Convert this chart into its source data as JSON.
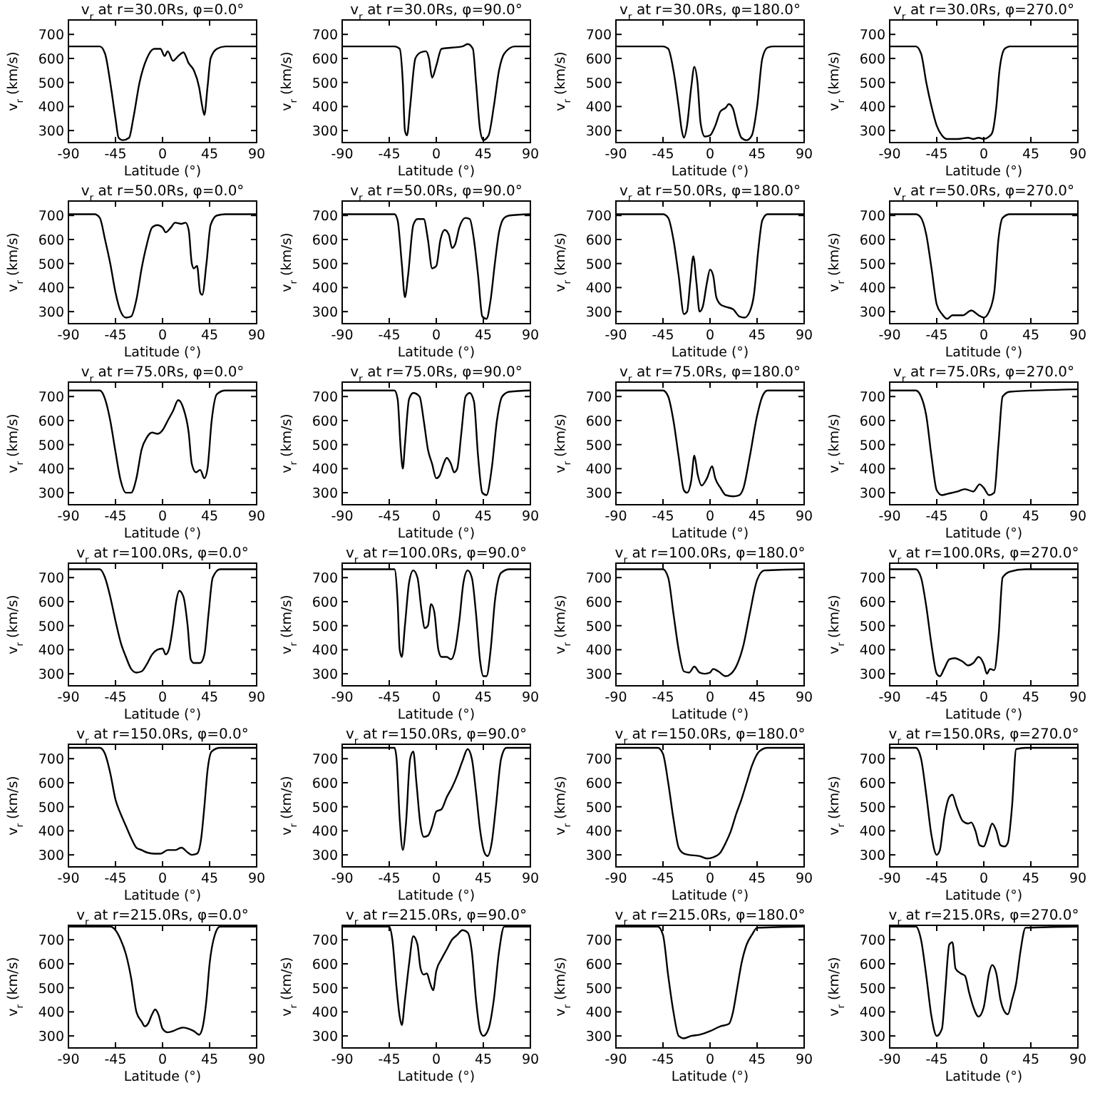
{
  "chart_data": [
    {
      "type": "line",
      "title": "v$_{r}$ at r=30.0Rs, φ=0.0°",
      "xlabel": "Latitude (°)",
      "ylabel": "v$_{r}$ (km/s)",
      "xlim": [
        -90,
        90
      ],
      "ylim": [
        250,
        760
      ],
      "xticks": [
        -90,
        -45,
        0,
        45,
        90
      ],
      "yticks": [
        300,
        400,
        500,
        600,
        700
      ],
      "x": [
        -90,
        -60,
        -55,
        -50,
        -45,
        -42,
        -38,
        -32,
        -28,
        -22,
        -15,
        -8,
        -2,
        2,
        5,
        10,
        15,
        20,
        25,
        30,
        35,
        38,
        40,
        43,
        46,
        52,
        60,
        90
      ],
      "series": [
        {
          "color": "#000000",
          "values": [
            650,
            650,
            620,
            500,
            350,
            270,
            260,
            270,
            350,
            500,
            600,
            640,
            640,
            610,
            630,
            590,
            610,
            625,
            580,
            550,
            480,
            400,
            365,
            480,
            600,
            640,
            650,
            650
          ]
        }
      ]
    },
    {
      "type": "line",
      "title": "v$_{r}$ at r=30.0Rs, φ=90.0°",
      "xlabel": "Latitude (°)",
      "ylabel": "v$_{r}$ (km/s)",
      "xlim": [
        -90,
        90
      ],
      "ylim": [
        250,
        760
      ],
      "xticks": [
        -90,
        -45,
        0,
        45,
        90
      ],
      "yticks": [
        300,
        400,
        500,
        600,
        700
      ],
      "x": [
        -90,
        -40,
        -35,
        -32,
        -30,
        -28,
        -25,
        -20,
        -15,
        -10,
        -7,
        -4,
        0,
        5,
        15,
        25,
        30,
        35,
        38,
        42,
        45,
        50,
        55,
        60,
        65,
        75,
        90
      ],
      "series": [
        {
          "color": "#000000",
          "values": [
            650,
            650,
            640,
            500,
            300,
            280,
            400,
            600,
            625,
            630,
            600,
            520,
            570,
            640,
            645,
            650,
            660,
            640,
            500,
            300,
            260,
            280,
            400,
            550,
            620,
            650,
            650
          ]
        }
      ]
    },
    {
      "type": "line",
      "title": "v$_{r}$ at r=30.0Rs, φ=180.0°",
      "xlabel": "Latitude (°)",
      "ylabel": "v$_{r}$ (km/s)",
      "xlim": [
        -90,
        90
      ],
      "ylim": [
        250,
        760
      ],
      "xticks": [
        -90,
        -45,
        0,
        45,
        90
      ],
      "yticks": [
        300,
        400,
        500,
        600,
        700
      ],
      "x": [
        -90,
        -45,
        -40,
        -35,
        -30,
        -27,
        -25,
        -22,
        -18,
        -15,
        -12,
        -9,
        -5,
        0,
        5,
        10,
        15,
        18,
        22,
        26,
        30,
        35,
        40,
        45,
        50,
        55,
        60,
        90
      ],
      "series": [
        {
          "color": "#000000",
          "values": [
            650,
            650,
            640,
            550,
            400,
            300,
            270,
            320,
            480,
            565,
            500,
            330,
            275,
            280,
            320,
            380,
            395,
            410,
            390,
            320,
            270,
            260,
            280,
            400,
            600,
            645,
            650,
            650
          ]
        }
      ]
    },
    {
      "type": "line",
      "title": "v$_{r}$ at r=30.0Rs, φ=270.0°",
      "xlabel": "Latitude (°)",
      "ylabel": "v$_{r}$ (km/s)",
      "xlim": [
        -90,
        90
      ],
      "ylim": [
        250,
        760
      ],
      "xticks": [
        -90,
        -45,
        0,
        45,
        90
      ],
      "yticks": [
        300,
        400,
        500,
        600,
        700
      ],
      "x": [
        -90,
        -65,
        -60,
        -55,
        -50,
        -45,
        -40,
        -35,
        -25,
        -15,
        -10,
        -5,
        0,
        5,
        8,
        12,
        15,
        20,
        25,
        90
      ],
      "series": [
        {
          "color": "#000000",
          "values": [
            650,
            650,
            620,
            500,
            400,
            320,
            280,
            265,
            265,
            270,
            265,
            270,
            265,
            275,
            290,
            400,
            550,
            640,
            650,
            650
          ]
        }
      ]
    },
    {
      "type": "line",
      "title": "v$_{r}$ at r=50.0Rs, φ=0.0°",
      "xlabel": "Latitude (°)",
      "ylabel": "v$_{r}$ (km/s)",
      "xlim": [
        -90,
        90
      ],
      "ylim": [
        250,
        760
      ],
      "xticks": [
        -90,
        -45,
        0,
        45,
        90
      ],
      "yticks": [
        300,
        400,
        500,
        600,
        700
      ],
      "x": [
        -90,
        -65,
        -60,
        -55,
        -50,
        -45,
        -40,
        -35,
        -30,
        -25,
        -20,
        -15,
        -10,
        -5,
        0,
        3,
        8,
        12,
        18,
        22,
        25,
        28,
        30,
        33,
        36,
        38,
        42,
        46,
        52,
        60,
        90
      ],
      "series": [
        {
          "color": "#000000",
          "values": [
            705,
            705,
            690,
            600,
            500,
            380,
            300,
            275,
            280,
            350,
            480,
            580,
            650,
            660,
            650,
            630,
            650,
            670,
            665,
            670,
            640,
            500,
            480,
            490,
            380,
            370,
            500,
            660,
            700,
            705,
            705
          ]
        }
      ]
    },
    {
      "type": "line",
      "title": "v$_{r}$ at r=50.0Rs, φ=90.0°",
      "xlabel": "Latitude (°)",
      "ylabel": "v$_{r}$ (km/s)",
      "xlim": [
        -90,
        90
      ],
      "ylim": [
        250,
        760
      ],
      "xticks": [
        -90,
        -45,
        0,
        45,
        90
      ],
      "yticks": [
        300,
        400,
        500,
        600,
        700
      ],
      "x": [
        -90,
        -40,
        -37,
        -33,
        -30,
        -27,
        -22,
        -18,
        -12,
        -8,
        -4,
        0,
        4,
        8,
        12,
        15,
        18,
        22,
        28,
        32,
        36,
        40,
        44,
        48,
        52,
        56,
        60,
        65,
        70,
        90
      ],
      "series": [
        {
          "color": "#000000",
          "values": [
            705,
            705,
            680,
            500,
            360,
            450,
            660,
            685,
            685,
            600,
            480,
            490,
            600,
            640,
            620,
            565,
            580,
            650,
            690,
            685,
            600,
            450,
            280,
            270,
            350,
            500,
            630,
            690,
            700,
            705
          ]
        }
      ]
    },
    {
      "type": "line",
      "title": "v$_{r}$ at r=50.0Rs, φ=180.0°",
      "xlabel": "Latitude (°)",
      "ylabel": "v$_{r}$ (km/s)",
      "xlim": [
        -90,
        90
      ],
      "ylim": [
        250,
        760
      ],
      "xticks": [
        -90,
        -45,
        0,
        45,
        90
      ],
      "yticks": [
        300,
        400,
        500,
        600,
        700
      ],
      "x": [
        -90,
        -45,
        -40,
        -35,
        -30,
        -25,
        -22,
        -19,
        -16,
        -13,
        -10,
        -7,
        -3,
        0,
        3,
        6,
        10,
        15,
        22,
        28,
        33,
        38,
        42,
        46,
        50,
        55,
        90
      ],
      "series": [
        {
          "color": "#000000",
          "values": [
            705,
            705,
            690,
            600,
            450,
            290,
            300,
            420,
            530,
            420,
            300,
            320,
            420,
            475,
            450,
            360,
            330,
            320,
            310,
            280,
            275,
            300,
            370,
            550,
            680,
            705,
            705
          ]
        }
      ]
    },
    {
      "type": "line",
      "title": "v$_{r}$ at r=50.0Rs, φ=270.0°",
      "xlabel": "Latitude (°)",
      "ylabel": "v$_{r}$ (km/s)",
      "xlim": [
        -90,
        90
      ],
      "ylim": [
        250,
        760
      ],
      "xticks": [
        -90,
        -45,
        0,
        45,
        90
      ],
      "yticks": [
        300,
        400,
        500,
        600,
        700
      ],
      "x": [
        -90,
        -65,
        -60,
        -55,
        -50,
        -45,
        -40,
        -35,
        -30,
        -20,
        -12,
        -5,
        0,
        5,
        10,
        14,
        18,
        25,
        90
      ],
      "series": [
        {
          "color": "#000000",
          "values": [
            705,
            705,
            690,
            620,
            480,
            330,
            290,
            270,
            285,
            285,
            305,
            285,
            275,
            300,
            380,
            600,
            690,
            705,
            705
          ]
        }
      ]
    },
    {
      "type": "line",
      "title": "v$_{r}$ at r=75.0Rs, φ=0.0°",
      "xlabel": "Latitude (°)",
      "ylabel": "v$_{r}$ (km/s)",
      "xlim": [
        -90,
        90
      ],
      "ylim": [
        250,
        760
      ],
      "xticks": [
        -90,
        -45,
        0,
        45,
        90
      ],
      "yticks": [
        300,
        400,
        500,
        600,
        700
      ],
      "x": [
        -90,
        -60,
        -55,
        -50,
        -45,
        -40,
        -35,
        -30,
        -25,
        -20,
        -15,
        -10,
        -5,
        0,
        5,
        10,
        15,
        20,
        25,
        28,
        32,
        36,
        40,
        43,
        47,
        52,
        60,
        90
      ],
      "series": [
        {
          "color": "#000000",
          "values": [
            725,
            725,
            690,
            600,
            470,
            350,
            300,
            300,
            360,
            480,
            530,
            550,
            545,
            560,
            600,
            640,
            685,
            650,
            550,
            420,
            385,
            395,
            360,
            400,
            600,
            710,
            725,
            725
          ]
        }
      ]
    },
    {
      "type": "line",
      "title": "v$_{r}$ at r=75.0Rs, φ=90.0°",
      "xlabel": "Latitude (°)",
      "ylabel": "v$_{r}$ (km/s)",
      "xlim": [
        -90,
        90
      ],
      "ylim": [
        250,
        760
      ],
      "xticks": [
        -90,
        -45,
        0,
        45,
        90
      ],
      "yticks": [
        300,
        400,
        500,
        600,
        700
      ],
      "x": [
        -90,
        -40,
        -37,
        -34,
        -32,
        -30,
        -26,
        -22,
        -16,
        -12,
        -8,
        -4,
        0,
        3,
        7,
        10,
        14,
        17,
        20,
        24,
        28,
        32,
        36,
        40,
        44,
        48,
        53,
        58,
        63,
        70,
        90
      ],
      "series": [
        {
          "color": "#000000",
          "values": [
            725,
            725,
            690,
            480,
            400,
            500,
            690,
            715,
            700,
            600,
            480,
            420,
            360,
            370,
            420,
            445,
            420,
            385,
            400,
            550,
            700,
            715,
            680,
            450,
            300,
            290,
            400,
            600,
            700,
            720,
            725
          ]
        }
      ]
    },
    {
      "type": "line",
      "title": "v$_{r}$ at r=75.0Rs, φ=180.0°",
      "xlabel": "Latitude (°)",
      "ylabel": "v$_{r}$ (km/s)",
      "xlim": [
        -90,
        90
      ],
      "ylim": [
        250,
        760
      ],
      "xticks": [
        -90,
        -45,
        0,
        45,
        90
      ],
      "yticks": [
        300,
        400,
        500,
        600,
        700
      ],
      "x": [
        -90,
        -45,
        -40,
        -35,
        -30,
        -25,
        -22,
        -18,
        -15,
        -12,
        -8,
        -3,
        2,
        5,
        10,
        15,
        22,
        28,
        32,
        38,
        45,
        50,
        55,
        90
      ],
      "series": [
        {
          "color": "#000000",
          "values": [
            725,
            725,
            700,
            600,
            450,
            310,
            300,
            350,
            455,
            380,
            330,
            360,
            410,
            360,
            320,
            290,
            285,
            290,
            320,
            450,
            620,
            700,
            725,
            725
          ]
        }
      ]
    },
    {
      "type": "line",
      "title": "v$_{r}$ at r=75.0Rs, φ=270.0°",
      "xlabel": "Latitude (°)",
      "ylabel": "v$_{r}$ (km/s)",
      "xlim": [
        -90,
        90
      ],
      "ylim": [
        250,
        760
      ],
      "xticks": [
        -90,
        -45,
        0,
        45,
        90
      ],
      "yticks": [
        300,
        400,
        500,
        600,
        700
      ],
      "x": [
        -90,
        -65,
        -60,
        -55,
        -50,
        -45,
        -40,
        -35,
        -25,
        -18,
        -10,
        -4,
        0,
        5,
        10,
        14,
        18,
        25,
        90
      ],
      "series": [
        {
          "color": "#000000",
          "values": [
            725,
            725,
            700,
            620,
            450,
            310,
            290,
            295,
            305,
            315,
            305,
            335,
            320,
            290,
            300,
            500,
            700,
            720,
            730
          ]
        }
      ]
    },
    {
      "type": "line",
      "title": "v$_{r}$ at r=100.0Rs, φ=0.0°",
      "xlabel": "Latitude (°)",
      "ylabel": "v$_{r}$ (km/s)",
      "xlim": [
        -90,
        90
      ],
      "ylim": [
        250,
        760
      ],
      "xticks": [
        -90,
        -45,
        0,
        45,
        90
      ],
      "yticks": [
        300,
        400,
        500,
        600,
        700
      ],
      "x": [
        -90,
        -60,
        -55,
        -50,
        -45,
        -40,
        -35,
        -30,
        -25,
        -20,
        -15,
        -10,
        -5,
        0,
        3,
        6,
        10,
        13,
        16,
        20,
        24,
        27,
        30,
        36,
        40,
        44,
        48,
        55,
        90
      ],
      "series": [
        {
          "color": "#000000",
          "values": [
            735,
            735,
            700,
            620,
            520,
            430,
            370,
            320,
            305,
            310,
            340,
            380,
            400,
            405,
            380,
            400,
            500,
            600,
            645,
            620,
            500,
            360,
            345,
            345,
            380,
            550,
            700,
            735,
            735
          ]
        }
      ]
    },
    {
      "type": "line",
      "title": "v$_{r}$ at r=100.0Rs, φ=90.0°",
      "xlabel": "Latitude (°)",
      "ylabel": "v$_{r}$ (km/s)",
      "xlim": [
        -90,
        90
      ],
      "ylim": [
        250,
        760
      ],
      "xticks": [
        -90,
        -45,
        0,
        45,
        90
      ],
      "yticks": [
        300,
        400,
        500,
        600,
        700
      ],
      "x": [
        -90,
        -40,
        -37,
        -35,
        -33,
        -30,
        -26,
        -22,
        -18,
        -14,
        -11,
        -8,
        -5,
        -2,
        2,
        5,
        10,
        14,
        18,
        22,
        26,
        30,
        34,
        38,
        42,
        45,
        48,
        52,
        56,
        62,
        70,
        90
      ],
      "series": [
        {
          "color": "#000000",
          "values": [
            735,
            735,
            600,
            400,
            370,
            500,
            680,
            730,
            700,
            560,
            490,
            500,
            590,
            560,
            400,
            370,
            370,
            360,
            400,
            520,
            680,
            730,
            700,
            550,
            350,
            290,
            290,
            400,
            600,
            720,
            735,
            735
          ]
        }
      ]
    },
    {
      "type": "line",
      "title": "v$_{r}$ at r=100.0Rs, φ=180.0°",
      "xlabel": "Latitude (°)",
      "ylabel": "v$_{r}$ (km/s)",
      "xlim": [
        -90,
        90
      ],
      "ylim": [
        250,
        760
      ],
      "xticks": [
        -90,
        -45,
        0,
        45,
        90
      ],
      "yticks": [
        300,
        400,
        500,
        600,
        700
      ],
      "x": [
        -90,
        -45,
        -40,
        -35,
        -30,
        -25,
        -20,
        -15,
        -10,
        -5,
        0,
        3,
        8,
        15,
        20,
        26,
        32,
        38,
        45,
        52,
        90
      ],
      "series": [
        {
          "color": "#000000",
          "values": [
            735,
            735,
            700,
            550,
            400,
            310,
            305,
            330,
            305,
            300,
            305,
            320,
            310,
            290,
            300,
            340,
            420,
            550,
            690,
            730,
            735
          ]
        }
      ]
    },
    {
      "type": "line",
      "title": "v$_{r}$ at r=100.0Rs, φ=270.0°",
      "xlabel": "Latitude (°)",
      "ylabel": "v$_{r}$ (km/s)",
      "xlim": [
        -90,
        90
      ],
      "ylim": [
        250,
        760
      ],
      "xticks": [
        -90,
        -45,
        0,
        45,
        90
      ],
      "yticks": [
        300,
        400,
        500,
        600,
        700
      ],
      "x": [
        -90,
        -65,
        -60,
        -55,
        -50,
        -45,
        -42,
        -38,
        -33,
        -28,
        -20,
        -15,
        -10,
        -5,
        0,
        3,
        6,
        10,
        14,
        18,
        25,
        40,
        90
      ],
      "series": [
        {
          "color": "#000000",
          "values": [
            735,
            735,
            700,
            580,
            420,
            300,
            290,
            320,
            360,
            365,
            350,
            335,
            345,
            370,
            340,
            300,
            320,
            315,
            450,
            700,
            725,
            735,
            735
          ]
        }
      ]
    },
    {
      "type": "line",
      "title": "v$_{r}$ at r=150.0Rs, φ=0.0°",
      "xlabel": "Latitude (°)",
      "ylabel": "v$_{r}$ (km/s)",
      "xlim": [
        -90,
        90
      ],
      "ylim": [
        250,
        760
      ],
      "xticks": [
        -90,
        -45,
        0,
        45,
        90
      ],
      "yticks": [
        300,
        400,
        500,
        600,
        700
      ],
      "x": [
        -90,
        -60,
        -55,
        -50,
        -45,
        -40,
        -35,
        -30,
        -25,
        -20,
        -15,
        -8,
        -2,
        5,
        12,
        18,
        24,
        28,
        33,
        37,
        40,
        43,
        47,
        55,
        90
      ],
      "series": [
        {
          "color": "#000000",
          "values": [
            745,
            745,
            720,
            640,
            530,
            470,
            420,
            370,
            330,
            320,
            310,
            305,
            305,
            320,
            320,
            330,
            310,
            300,
            305,
            370,
            500,
            650,
            730,
            745,
            745
          ]
        }
      ]
    },
    {
      "type": "line",
      "title": "v$_{r}$ at r=150.0Rs, φ=90.0°",
      "xlabel": "Latitude (°)",
      "ylabel": "v$_{r}$ (km/s)",
      "xlim": [
        -90,
        90
      ],
      "ylim": [
        250,
        760
      ],
      "xticks": [
        -90,
        -45,
        0,
        45,
        90
      ],
      "yticks": [
        300,
        400,
        500,
        600,
        700
      ],
      "x": [
        -90,
        -40,
        -38,
        -35,
        -32,
        -29,
        -25,
        -22,
        -19,
        -15,
        -12,
        -8,
        -4,
        0,
        5,
        10,
        15,
        20,
        25,
        30,
        34,
        38,
        42,
        46,
        49,
        53,
        57,
        62,
        67,
        90
      ],
      "series": [
        {
          "color": "#000000",
          "values": [
            745,
            745,
            700,
            450,
            320,
            430,
            700,
            730,
            600,
            420,
            375,
            380,
            420,
            480,
            490,
            540,
            580,
            630,
            690,
            740,
            700,
            560,
            400,
            310,
            295,
            350,
            500,
            700,
            745,
            745
          ]
        }
      ]
    },
    {
      "type": "line",
      "title": "v$_{r}$ at r=150.0Rs, φ=180.0°",
      "xlabel": "Latitude (°)",
      "ylabel": "v$_{r}$ (km/s)",
      "xlim": [
        -90,
        90
      ],
      "ylim": [
        250,
        760
      ],
      "xticks": [
        -90,
        -45,
        0,
        45,
        90
      ],
      "yticks": [
        300,
        400,
        500,
        600,
        700
      ],
      "x": [
        -90,
        -50,
        -45,
        -40,
        -35,
        -30,
        -25,
        -20,
        -10,
        -3,
        3,
        10,
        15,
        20,
        25,
        30,
        35,
        40,
        47,
        55,
        90
      ],
      "series": [
        {
          "color": "#000000",
          "values": [
            745,
            745,
            720,
            600,
            450,
            330,
            305,
            300,
            295,
            285,
            290,
            310,
            350,
            400,
            470,
            530,
            600,
            670,
            730,
            745,
            745
          ]
        }
      ]
    },
    {
      "type": "line",
      "title": "v$_{r}$ at r=150.0Rs, φ=270.0°",
      "xlabel": "Latitude (°)",
      "ylabel": "v$_{r}$ (km/s)",
      "xlim": [
        -90,
        90
      ],
      "ylim": [
        250,
        760
      ],
      "xticks": [
        -90,
        -45,
        0,
        45,
        90
      ],
      "yticks": [
        300,
        400,
        500,
        600,
        700
      ],
      "x": [
        -90,
        -65,
        -60,
        -55,
        -50,
        -45,
        -42,
        -38,
        -33,
        -30,
        -26,
        -20,
        -15,
        -12,
        -8,
        -4,
        0,
        4,
        8,
        12,
        16,
        20,
        23,
        27,
        31,
        40,
        90
      ],
      "series": [
        {
          "color": "#000000",
          "values": [
            745,
            745,
            700,
            550,
            380,
            300,
            320,
            450,
            540,
            550,
            500,
            440,
            430,
            435,
            400,
            340,
            335,
            380,
            430,
            400,
            340,
            335,
            350,
            500,
            740,
            745,
            745
          ]
        }
      ]
    },
    {
      "type": "line",
      "title": "v$_{r}$ at r=215.0Rs, φ=0.0°",
      "xlabel": "Latitude (°)",
      "ylabel": "v$_{r}$ (km/s)",
      "xlim": [
        -90,
        90
      ],
      "ylim": [
        250,
        760
      ],
      "xticks": [
        -90,
        -45,
        0,
        45,
        90
      ],
      "yticks": [
        300,
        400,
        500,
        600,
        700
      ],
      "x": [
        -90,
        -50,
        -45,
        -40,
        -35,
        -30,
        -25,
        -20,
        -17,
        -14,
        -10,
        -7,
        -4,
        0,
        5,
        10,
        15,
        20,
        25,
        30,
        35,
        38,
        42,
        45,
        50,
        55,
        90
      ],
      "series": [
        {
          "color": "#000000",
          "values": [
            755,
            755,
            740,
            700,
            640,
            540,
            400,
            360,
            340,
            350,
            390,
            410,
            390,
            330,
            315,
            320,
            330,
            335,
            330,
            320,
            305,
            330,
            450,
            600,
            720,
            755,
            755
          ]
        }
      ]
    },
    {
      "type": "line",
      "title": "v$_{r}$ at r=215.0Rs, φ=90.0°",
      "xlabel": "Latitude (°)",
      "ylabel": "v$_{r}$ (km/s)",
      "xlim": [
        -90,
        90
      ],
      "ylim": [
        250,
        760
      ],
      "xticks": [
        -90,
        -45,
        0,
        45,
        90
      ],
      "yticks": [
        300,
        400,
        500,
        600,
        700
      ],
      "x": [
        -90,
        -45,
        -42,
        -38,
        -35,
        -33,
        -30,
        -26,
        -22,
        -18,
        -15,
        -12,
        -9,
        -6,
        -3,
        0,
        5,
        10,
        15,
        20,
        25,
        30,
        34,
        38,
        42,
        45,
        50,
        55,
        60,
        65,
        90
      ],
      "series": [
        {
          "color": "#000000",
          "values": [
            755,
            755,
            700,
            500,
            380,
            345,
            450,
            600,
            715,
            680,
            580,
            555,
            560,
            520,
            490,
            570,
            620,
            660,
            700,
            720,
            740,
            730,
            650,
            450,
            320,
            300,
            330,
            450,
            650,
            755,
            755
          ]
        }
      ]
    },
    {
      "type": "line",
      "title": "v$_{r}$ at r=215.0Rs, φ=180.0°",
      "xlabel": "Latitude (°)",
      "ylabel": "v$_{r}$ (km/s)",
      "xlim": [
        -90,
        90
      ],
      "ylim": [
        250,
        760
      ],
      "xticks": [
        -90,
        -45,
        0,
        45,
        90
      ],
      "yticks": [
        300,
        400,
        500,
        600,
        700
      ],
      "x": [
        -90,
        -50,
        -45,
        -40,
        -35,
        -30,
        -25,
        -18,
        -10,
        0,
        10,
        18,
        22,
        26,
        30,
        35,
        40,
        45,
        90
      ],
      "series": [
        {
          "color": "#000000",
          "values": [
            755,
            755,
            720,
            550,
            400,
            300,
            290,
            300,
            305,
            320,
            340,
            350,
            400,
            500,
            600,
            680,
            720,
            750,
            755
          ]
        }
      ]
    },
    {
      "type": "line",
      "title": "v$_{r}$ at r=215.0Rs, φ=270.0°",
      "xlabel": "Latitude (°)",
      "ylabel": "v$_{r}$ (km/s)",
      "xlim": [
        -90,
        90
      ],
      "ylim": [
        250,
        760
      ],
      "xticks": [
        -90,
        -45,
        0,
        45,
        90
      ],
      "yticks": [
        300,
        400,
        500,
        600,
        700
      ],
      "x": [
        -90,
        -65,
        -60,
        -55,
        -50,
        -45,
        -40,
        -37,
        -33,
        -30,
        -27,
        -22,
        -18,
        -14,
        -10,
        -5,
        0,
        5,
        8,
        12,
        16,
        20,
        23,
        27,
        31,
        35,
        40,
        90
      ],
      "series": [
        {
          "color": "#000000",
          "values": [
            755,
            755,
            700,
            550,
            380,
            300,
            330,
            480,
            680,
            690,
            580,
            560,
            550,
            480,
            420,
            380,
            420,
            560,
            595,
            560,
            450,
            400,
            390,
            450,
            520,
            650,
            750,
            755
          ]
        }
      ]
    }
  ]
}
